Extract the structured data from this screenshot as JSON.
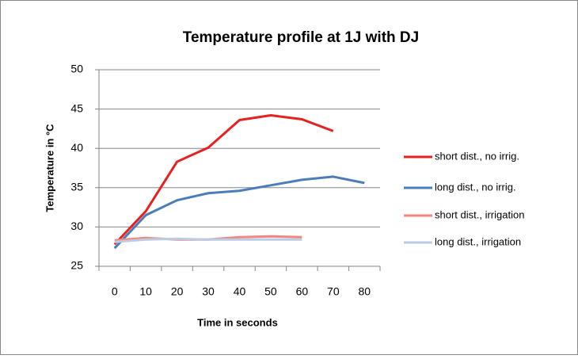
{
  "chart_data": {
    "type": "line",
    "title": "Temperature profile at 1J with DJ",
    "x_label": "Time in seconds",
    "y_label": "Temperature in °C",
    "categories": [
      "0",
      "10",
      "20",
      "30",
      "40",
      "50",
      "60",
      "70",
      "80"
    ],
    "series": [
      {
        "name": "short dist., no irrig.",
        "color": "#e8201e",
        "values": [
          27.8,
          32,
          38.3,
          40.1,
          43.6,
          44.2,
          43.7,
          42.2,
          null
        ]
      },
      {
        "name": "long dist., no irrig.",
        "color": "#4a7ebb",
        "values": [
          27.3,
          31.5,
          33.4,
          34.3,
          34.6,
          35.3,
          36.0,
          36.4,
          35.6
        ]
      },
      {
        "name": "short dist., irrigation",
        "color": "#f4857f",
        "values": [
          28.3,
          28.6,
          28.4,
          28.4,
          28.7,
          28.8,
          28.7,
          null,
          null
        ]
      },
      {
        "name": "long dist., irrigation",
        "color": "#b9cde5",
        "values": [
          28.1,
          28.4,
          28.5,
          28.4,
          28.4,
          28.4,
          28.4,
          null,
          null
        ]
      }
    ],
    "ylim": [
      25,
      50
    ],
    "yticks": [
      25,
      30,
      35,
      40,
      45,
      50
    ],
    "grid": true,
    "legend": "right"
  }
}
